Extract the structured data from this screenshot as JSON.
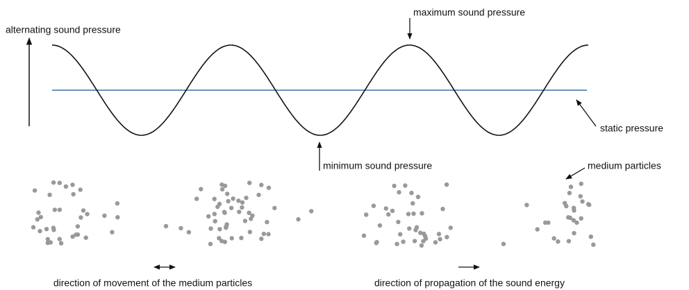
{
  "labels": {
    "alternating": "alternating sound pressure",
    "maximum": "maximum sound pressure",
    "static": "static pressure",
    "minimum": "minimum sound pressure",
    "particles": "medium particles",
    "movement": "direction of movement of the medium particles",
    "propagation": "direction of propagation of the sound energy"
  }
}
